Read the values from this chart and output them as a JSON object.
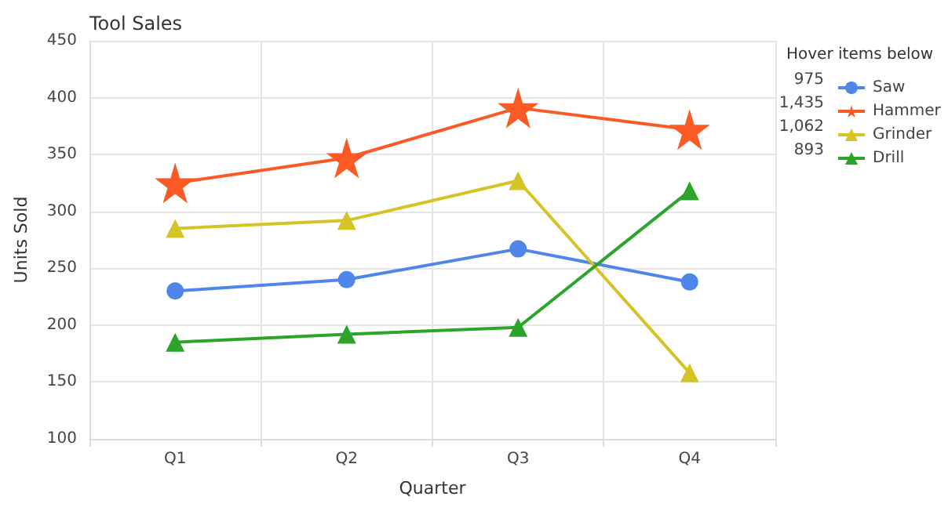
{
  "chart_data": {
    "type": "line",
    "title": "Tool Sales",
    "xlabel": "Quarter",
    "ylabel": "Units Sold",
    "legend_title": "Hover items below",
    "categories": [
      "Q1",
      "Q2",
      "Q3",
      "Q4"
    ],
    "series": [
      {
        "name": "Saw",
        "color": "#4e87e9",
        "marker": "circle",
        "values": [
          230,
          240,
          267,
          238
        ]
      },
      {
        "name": "Hammer",
        "color": "#fb5a24",
        "marker": "star",
        "values": [
          325,
          347,
          391,
          372
        ]
      },
      {
        "name": "Grinder",
        "color": "#d6c326",
        "marker": "triangle",
        "values": [
          285,
          292,
          327,
          158
        ]
      },
      {
        "name": "Drill",
        "color": "#2aa52a",
        "marker": "triangle",
        "values": [
          185,
          192,
          198,
          318
        ]
      }
    ],
    "totals": [
      "975",
      "1,435",
      "1,062",
      "893"
    ],
    "ylim": [
      100,
      450
    ],
    "yticks": [
      100,
      150,
      200,
      250,
      300,
      350,
      400,
      450
    ],
    "grid": true,
    "legend": "right"
  }
}
